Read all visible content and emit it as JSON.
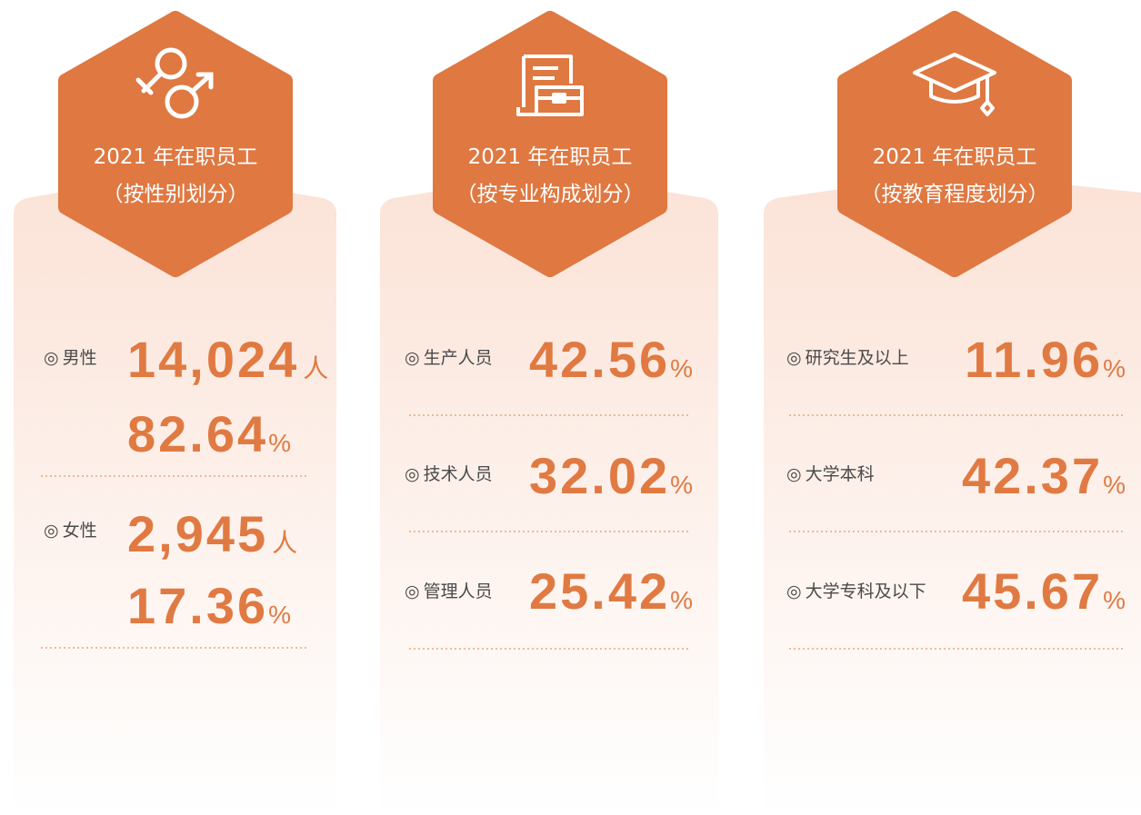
{
  "bullet": "◎",
  "panels": [
    {
      "title_line1": "2021 年在职员工",
      "title_line2": "（按性别划分）",
      "items": [
        {
          "label": "男性",
          "value": "14,024",
          "unit": "人",
          "percent": "82.64",
          "percent_unit": "%"
        },
        {
          "label": "女性",
          "value": "2,945",
          "unit": "人",
          "percent": "17.36",
          "percent_unit": "%"
        }
      ]
    },
    {
      "title_line1": "2021 年在职员工",
      "title_line2": "（按专业构成划分）",
      "items": [
        {
          "label": "生产人员",
          "percent": "42.56",
          "percent_unit": "%"
        },
        {
          "label": "技术人员",
          "percent": "32.02",
          "percent_unit": "%"
        },
        {
          "label": "管理人员",
          "percent": "25.42",
          "percent_unit": "%"
        }
      ]
    },
    {
      "title_line1": "2021 年在职员工",
      "title_line2": "（按教育程度划分）",
      "items": [
        {
          "label": "研究生及以上",
          "percent": "11.96",
          "percent_unit": "%"
        },
        {
          "label": "大学本科",
          "percent": "42.37",
          "percent_unit": "%"
        },
        {
          "label": "大学专科及以下",
          "percent": "45.67",
          "percent_unit": "%"
        }
      ]
    }
  ]
}
